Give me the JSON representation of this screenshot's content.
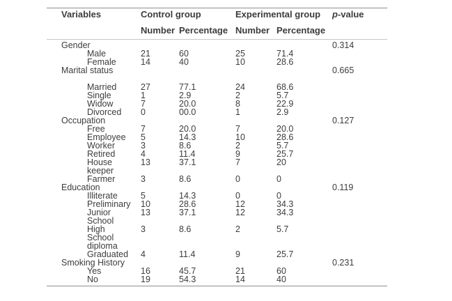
{
  "table": {
    "headers": {
      "variables": "Variables",
      "control_group": "Control group",
      "experimental_group": "Experimental group",
      "p_italic": "p",
      "p_rest": "-value",
      "sub": [
        "Number",
        "Percentage",
        "Number",
        "Percentage"
      ]
    },
    "rows": [
      {
        "label": "Gender",
        "indent": 0,
        "n1": "",
        "p1": "",
        "n2": "",
        "p2": "",
        "p": "0.314",
        "gap_before": false
      },
      {
        "label": "Male",
        "indent": 1,
        "n1": "21",
        "p1": "60",
        "n2": "25",
        "p2": "71.4",
        "p": "",
        "gap_before": false
      },
      {
        "label": "Female",
        "indent": 1,
        "n1": "14",
        "p1": "40",
        "n2": "10",
        "p2": "28.6",
        "p": "",
        "gap_before": false
      },
      {
        "label": "Marital status",
        "indent": 0,
        "n1": "",
        "p1": "",
        "n2": "",
        "p2": "",
        "p": "0.665",
        "gap_before": false
      },
      {
        "label": "Married",
        "indent": 1,
        "n1": "27",
        "p1": "77.1",
        "n2": "24",
        "p2": "68.6",
        "p": "",
        "gap_before": true
      },
      {
        "label": "Single",
        "indent": 1,
        "n1": "1",
        "p1": "2.9",
        "n2": "2",
        "p2": "5.7",
        "p": "",
        "gap_before": false
      },
      {
        "label": "Widow",
        "indent": 1,
        "n1": "7",
        "p1": "20.0",
        "n2": "8",
        "p2": "22.9",
        "p": "",
        "gap_before": false
      },
      {
        "label": "Divorced",
        "indent": 1,
        "n1": "0",
        "p1": "00.0",
        "n2": "1",
        "p2": "2.9",
        "p": "",
        "gap_before": false
      },
      {
        "label": "Occupation",
        "indent": 0,
        "n1": "",
        "p1": "",
        "n2": "",
        "p2": "",
        "p": "0.127",
        "gap_before": false
      },
      {
        "label": "Free",
        "indent": 1,
        "n1": "7",
        "p1": "20.0",
        "n2": "7",
        "p2": "20.0",
        "p": "",
        "gap_before": false
      },
      {
        "label": "Employee",
        "indent": 1,
        "n1": "5",
        "p1": "14.3",
        "n2": "10",
        "p2": "28.6",
        "p": "",
        "gap_before": false
      },
      {
        "label": "Worker",
        "indent": 1,
        "n1": "3",
        "p1": "8.6",
        "n2": "2",
        "p2": "5.7",
        "p": "",
        "gap_before": false
      },
      {
        "label": "Retired",
        "indent": 1,
        "n1": "4",
        "p1": "11.4",
        "n2": "9",
        "p2": "25.7",
        "p": "",
        "gap_before": false
      },
      {
        "label": "House",
        "indent": 1,
        "n1": "13",
        "p1": "37.1",
        "n2": "7",
        "p2": "20",
        "p": "",
        "gap_before": false
      },
      {
        "label": "keeper",
        "indent": 1,
        "n1": "",
        "p1": "",
        "n2": "",
        "p2": "",
        "p": "",
        "gap_before": false
      },
      {
        "label": "Farmer",
        "indent": 1,
        "n1": "3",
        "p1": "8.6",
        "n2": "0",
        "p2": "0",
        "p": "",
        "gap_before": false
      },
      {
        "label": "Education",
        "indent": 0,
        "n1": "",
        "p1": "",
        "n2": "",
        "p2": "",
        "p": "0.119",
        "gap_before": false
      },
      {
        "label": "Illiterate",
        "indent": 1,
        "n1": "5",
        "p1": "14.3",
        "n2": "0",
        "p2": "0",
        "p": "",
        "gap_before": false
      },
      {
        "label": "Preliminary",
        "indent": 1,
        "n1": "10",
        "p1": "28.6",
        "n2": "12",
        "p2": "34.3",
        "p": "",
        "gap_before": false
      },
      {
        "label": "Junior",
        "indent": 1,
        "n1": "13",
        "p1": "37.1",
        "n2": "12",
        "p2": "34.3",
        "p": "",
        "gap_before": false
      },
      {
        "label": "School",
        "indent": 1,
        "n1": "",
        "p1": "",
        "n2": "",
        "p2": "",
        "p": "",
        "gap_before": false
      },
      {
        "label": "High",
        "indent": 1,
        "n1": "3",
        "p1": "8.6",
        "n2": "2",
        "p2": "5.7",
        "p": "",
        "gap_before": false
      },
      {
        "label": "School",
        "indent": 1,
        "n1": "",
        "p1": "",
        "n2": "",
        "p2": "",
        "p": "",
        "gap_before": false
      },
      {
        "label": "diploma",
        "indent": 1,
        "n1": "",
        "p1": "",
        "n2": "",
        "p2": "",
        "p": "",
        "gap_before": false
      },
      {
        "label": "Graduated",
        "indent": 1,
        "n1": "4",
        "p1": "11.4",
        "n2": "9",
        "p2": "25.7",
        "p": "",
        "gap_before": false
      },
      {
        "label": "Smoking History",
        "indent": 0,
        "n1": "",
        "p1": "",
        "n2": "",
        "p2": "",
        "p": "0.231",
        "gap_before": false
      },
      {
        "label": "Yes",
        "indent": 1,
        "n1": "16",
        "p1": "45.7",
        "n2": "21",
        "p2": "60",
        "p": "",
        "gap_before": false
      },
      {
        "label": "No",
        "indent": 1,
        "n1": "19",
        "p1": "54.3",
        "n2": "14",
        "p2": "40",
        "p": "",
        "gap_before": false
      }
    ],
    "colors": {
      "text": "#3c3c3c",
      "rule_dark": "#8e8e8e",
      "rule_light": "#c6c6c6",
      "background": "#ffffff"
    }
  }
}
